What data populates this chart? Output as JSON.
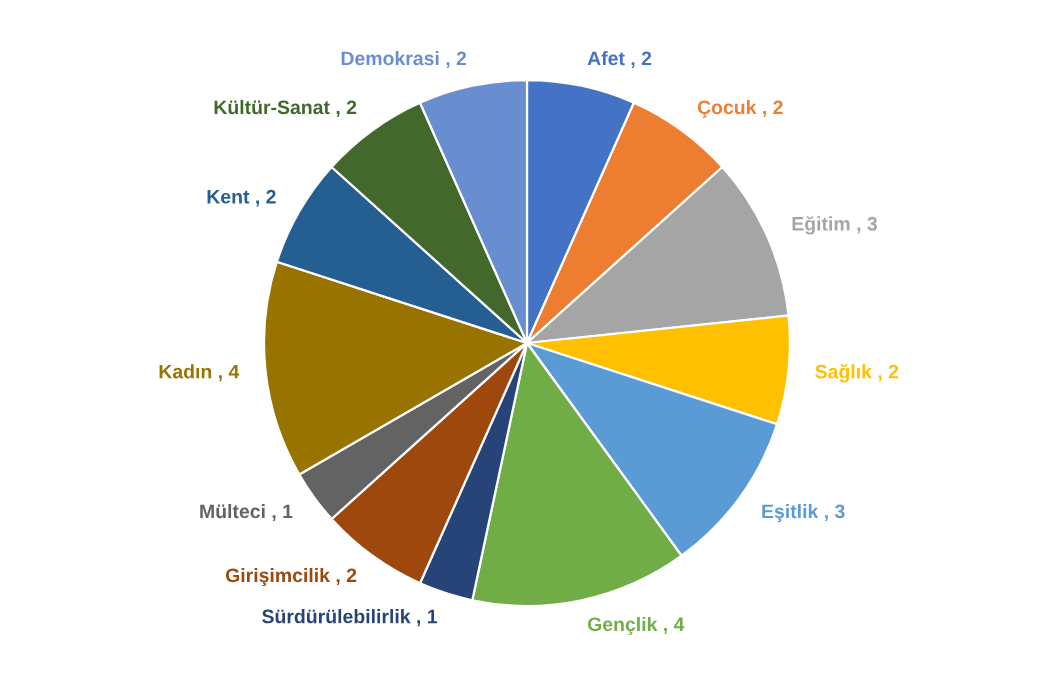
{
  "chart_data": {
    "type": "pie",
    "categories": [
      "Afet",
      "Çocuk",
      "Eğitim",
      "Sağlık",
      "Eşitlik",
      "Gençlik",
      "Sürdürülebilirlik",
      "Girişimcilik",
      "Mülteci",
      "Kadın",
      "Kent",
      "Kültür-Sanat",
      "Demokrasi"
    ],
    "values": [
      2,
      2,
      3,
      2,
      3,
      4,
      1,
      2,
      1,
      4,
      2,
      2,
      2
    ],
    "colors": [
      "#4472c4",
      "#ed7d31",
      "#a5a5a5",
      "#ffc000",
      "#5b9bd5",
      "#70ad47",
      "#264478",
      "#9e480e",
      "#636363",
      "#997300",
      "#255e91",
      "#43682b",
      "#698ed0"
    ],
    "value_labels": [
      ", 2",
      ", 2",
      ", 3",
      ", 2",
      ", 3",
      ", 4",
      ", 1",
      ", 2",
      ", 1",
      ", 4",
      ", 2",
      ", 2",
      ", 2"
    ],
    "legend": false
  }
}
